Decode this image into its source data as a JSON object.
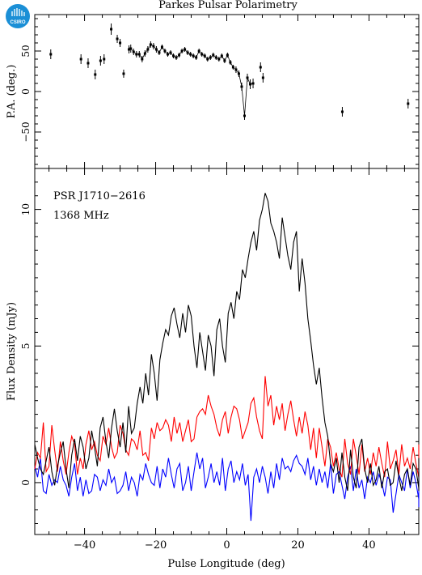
{
  "logo": {
    "text": "CSIRO",
    "color": "#1b8fd6"
  },
  "chart_data": [
    {
      "type": "scatter",
      "panel": "position-angle",
      "title": "Parkes Pulsar Polarimetry",
      "xlabel": "",
      "ylabel": "P.A. (deg.)",
      "xlim": [
        -54,
        54
      ],
      "ylim": [
        -95,
        95
      ],
      "xticks": [
        -40,
        -20,
        0,
        20,
        40
      ],
      "yticks": [
        -50,
        0,
        50
      ],
      "yticklabels": [
        "−50",
        "0",
        "50"
      ],
      "series": [
        {
          "marker_color": "#000000",
          "x": [
            -49.5,
            -41,
            -39,
            -37,
            -35.5,
            -34.5,
            -32.5,
            -30.8,
            -30,
            -29,
            -27.5,
            -27,
            -26.2,
            -25.4,
            -24.6,
            -23.8,
            -23,
            -22.2,
            -21.4,
            -20.6,
            -19.8,
            -19,
            -18.2,
            -17.4,
            -16.6,
            -15.8,
            -15,
            -14.2,
            -13.4,
            -12.6,
            -11.8,
            -11,
            -10.2,
            -9.4,
            -8.6,
            -7.8,
            -7,
            -6.2,
            -5.4,
            -4.6,
            -3.8,
            -3,
            -2.2,
            -1.4,
            -0.6,
            0.2,
            1,
            1.8,
            2.6,
            3.4,
            4.2,
            5,
            5.8,
            6.6,
            7.4,
            9.5,
            10.2,
            32.5,
            51
          ],
          "y": [
            46,
            40,
            35,
            21,
            38,
            40,
            77,
            65,
            60,
            22,
            52,
            53,
            49,
            46,
            46,
            40,
            47,
            52,
            58,
            56,
            52,
            48,
            55,
            50,
            46,
            48,
            44,
            42,
            45,
            50,
            52,
            48,
            46,
            44,
            42,
            50,
            46,
            44,
            40,
            42,
            45,
            42,
            40,
            44,
            38,
            45,
            36,
            30,
            27,
            22,
            6,
            -30,
            17,
            9,
            10,
            30,
            17,
            -25,
            -15
          ],
          "yerr": [
            6,
            6,
            6,
            6,
            6,
            6,
            7,
            5,
            5,
            5,
            5,
            5,
            4,
            4,
            4,
            4,
            4,
            4,
            4,
            4,
            4,
            3,
            3,
            3,
            3,
            3,
            3,
            3,
            3,
            3,
            3,
            3,
            3,
            3,
            3,
            3,
            3,
            3,
            3,
            3,
            3,
            3,
            3,
            3,
            3,
            3,
            3,
            3,
            4,
            4,
            5,
            5,
            5,
            6,
            6,
            6,
            6,
            6,
            6
          ]
        }
      ]
    },
    {
      "type": "line",
      "panel": "flux-profile",
      "annotations": [
        "PSR J1710−2616",
        "1368 MHz"
      ],
      "xlabel": "Pulse Longitude (deg)",
      "ylabel": "Flux Density (mJy)",
      "xlim": [
        -54,
        54
      ],
      "ylim": [
        -1.9,
        11.5
      ],
      "xticks": [
        -40,
        -20,
        0,
        20,
        40
      ],
      "xticklabels": [
        "−40",
        "−20",
        "0",
        "20",
        "40"
      ],
      "yticks": [
        0,
        5,
        10
      ],
      "yticklabels": [
        "0",
        "5",
        "10"
      ],
      "x_start": -54,
      "x_step": 0.8,
      "series": [
        {
          "color": "#000000",
          "values": [
            1.4,
            0.9,
            0.5,
            0.3,
            0.8,
            1.3,
            0.4,
            -0.1,
            0.6,
            1.1,
            1.5,
            0.5,
            -0.2,
            1.0,
            1.6,
            0.8,
            1.7,
            1.3,
            0.5,
            0.9,
            1.9,
            1.3,
            0.6,
            2.0,
            2.4,
            1.5,
            0.9,
            2.0,
            2.7,
            1.9,
            1.3,
            2.2,
            1.1,
            2.8,
            1.8,
            2.0,
            2.9,
            3.5,
            2.9,
            4.0,
            3.2,
            4.7,
            4.0,
            3.0,
            4.5,
            5.1,
            5.6,
            5.4,
            6.1,
            6.4,
            5.8,
            5.3,
            6.2,
            5.5,
            6.5,
            6.1,
            5.0,
            4.2,
            5.5,
            4.8,
            4.1,
            5.4,
            5.0,
            3.9,
            5.6,
            6.0,
            5.0,
            4.4,
            6.2,
            6.6,
            6.0,
            7.0,
            6.7,
            7.8,
            7.5,
            8.2,
            8.8,
            9.2,
            8.5,
            9.6,
            10.0,
            10.6,
            10.3,
            9.5,
            9.2,
            8.8,
            8.2,
            9.7,
            9.0,
            8.3,
            7.8,
            8.8,
            9.2,
            7.0,
            8.2,
            7.3,
            6.0,
            5.2,
            4.3,
            3.6,
            4.2,
            3.1,
            2.2,
            1.7,
            0.7,
            0.4,
            0.9,
            0.0,
            1.1,
            0.2,
            -0.3,
            1.2,
            0.2,
            -0.2,
            1.3,
            1.6,
            0.5,
            0.0,
            0.7,
            -0.1,
            0.1,
            0.6,
            -0.2,
            0.4,
            0.5,
            -0.1,
            0.0,
            0.8,
            0.2,
            -0.3,
            0.3,
            0.5,
            -0.1,
            0.7,
            0.5,
            -0.2,
            0.0,
            0.7,
            0.6,
            -0.3,
            0.4,
            0.9,
            0.3,
            0.5,
            0.2,
            0.6
          ]
        },
        {
          "color": "#ff0000",
          "values": [
            0.5,
            1.1,
            0.9,
            2.2,
            0.4,
            0.6,
            2.1,
            1.2,
            0.4,
            1.5,
            0.8,
            0.3,
            1.1,
            1.7,
            1.4,
            0.3,
            0.9,
            0.5,
            1.4,
            1.9,
            1.2,
            1.5,
            1.0,
            0.8,
            1.7,
            1.4,
            2.0,
            1.3,
            0.9,
            1.1,
            2.1,
            1.8,
            1.2,
            1.0,
            1.6,
            1.5,
            1.2,
            1.9,
            1.0,
            1.1,
            0.8,
            2.0,
            1.6,
            2.2,
            1.9,
            2.0,
            2.3,
            2.1,
            1.5,
            2.4,
            1.8,
            2.2,
            1.5,
            1.9,
            2.3,
            1.5,
            1.6,
            2.4,
            2.6,
            2.7,
            2.5,
            3.2,
            2.8,
            2.5,
            2.0,
            1.7,
            2.3,
            2.6,
            1.8,
            2.4,
            2.8,
            2.7,
            2.3,
            1.6,
            1.9,
            2.2,
            2.9,
            3.1,
            2.4,
            1.9,
            1.6,
            3.9,
            2.8,
            3.2,
            2.1,
            2.8,
            2.3,
            2.9,
            1.9,
            2.5,
            3.0,
            2.3,
            1.7,
            2.4,
            1.8,
            2.6,
            2.1,
            1.2,
            2.0,
            0.9,
            2.0,
            1.3,
            0.6,
            1.6,
            1.3,
            0.6,
            1.1,
            0.5,
            0.2,
            1.6,
            0.7,
            0.3,
            1.6,
            1.0,
            0.3,
            1.4,
            0.4,
            0.9,
            0.3,
            1.1,
            0.6,
            1.3,
            0.7,
            0.2,
            1.5,
            0.5,
            0.8,
            1.2,
            0.3,
            1.4,
            0.6,
            0.9,
            0.5,
            1.3,
            0.7,
            0.2,
            1.0,
            0.5,
            0.8,
            1.3,
            0.2,
            0.6,
            1.0,
            0.4,
            0.9,
            0.6,
            1.4,
            0.8
          ]
        },
        {
          "color": "#0000ff",
          "values": [
            0.6,
            0.2,
            0.9,
            -0.3,
            -0.4,
            0.3,
            -0.1,
            0.1,
            0.0,
            0.6,
            0.1,
            -0.1,
            -0.5,
            0.2,
            0.7,
            -0.3,
            0.2,
            -0.5,
            0.1,
            -0.4,
            -0.3,
            0.3,
            0.2,
            -0.3,
            0.1,
            -0.1,
            0.5,
            0.0,
            0.2,
            -0.4,
            -0.3,
            -0.1,
            0.4,
            -0.3,
            0.2,
            0.0,
            -0.5,
            0.3,
            0.1,
            0.7,
            0.3,
            0.0,
            -0.1,
            0.6,
            -0.2,
            0.5,
            0.2,
            0.9,
            0.3,
            -0.2,
            0.5,
            0.7,
            -0.3,
            0.0,
            0.6,
            -0.3,
            0.4,
            1.1,
            0.5,
            0.9,
            -0.2,
            0.2,
            0.7,
            0.0,
            0.4,
            -0.1,
            0.9,
            -0.3,
            0.5,
            0.8,
            0.0,
            0.4,
            0.1,
            0.7,
            -0.1,
            0.3,
            -1.4,
            0.2,
            0.5,
            0.0,
            0.6,
            0.2,
            -0.4,
            0.4,
            -0.2,
            0.7,
            0.1,
            0.9,
            0.5,
            0.6,
            0.4,
            0.8,
            1.0,
            0.7,
            0.6,
            0.3,
            0.9,
            0.1,
            0.6,
            -0.1,
            0.5,
            0.0,
            0.4,
            -0.2,
            0.7,
            -0.4,
            0.3,
            0.4,
            -0.1,
            -0.6,
            0.2,
            0.6,
            -0.3,
            0.5,
            -0.2,
            0.1,
            -0.6,
            0.2,
            0.0,
            0.4,
            -0.1,
            0.3,
            0.0,
            -0.5,
            0.2,
            0.1,
            -1.1,
            -0.4,
            0.3,
            0.0,
            -0.3,
            0.5,
            -0.2,
            0.4,
            0.0,
            -0.6,
            0.1,
            -0.3,
            0.5,
            -0.4,
            0.2,
            -0.2,
            -0.4,
            0.1,
            -0.3,
            0.4,
            -0.9
          ]
        }
      ]
    }
  ]
}
